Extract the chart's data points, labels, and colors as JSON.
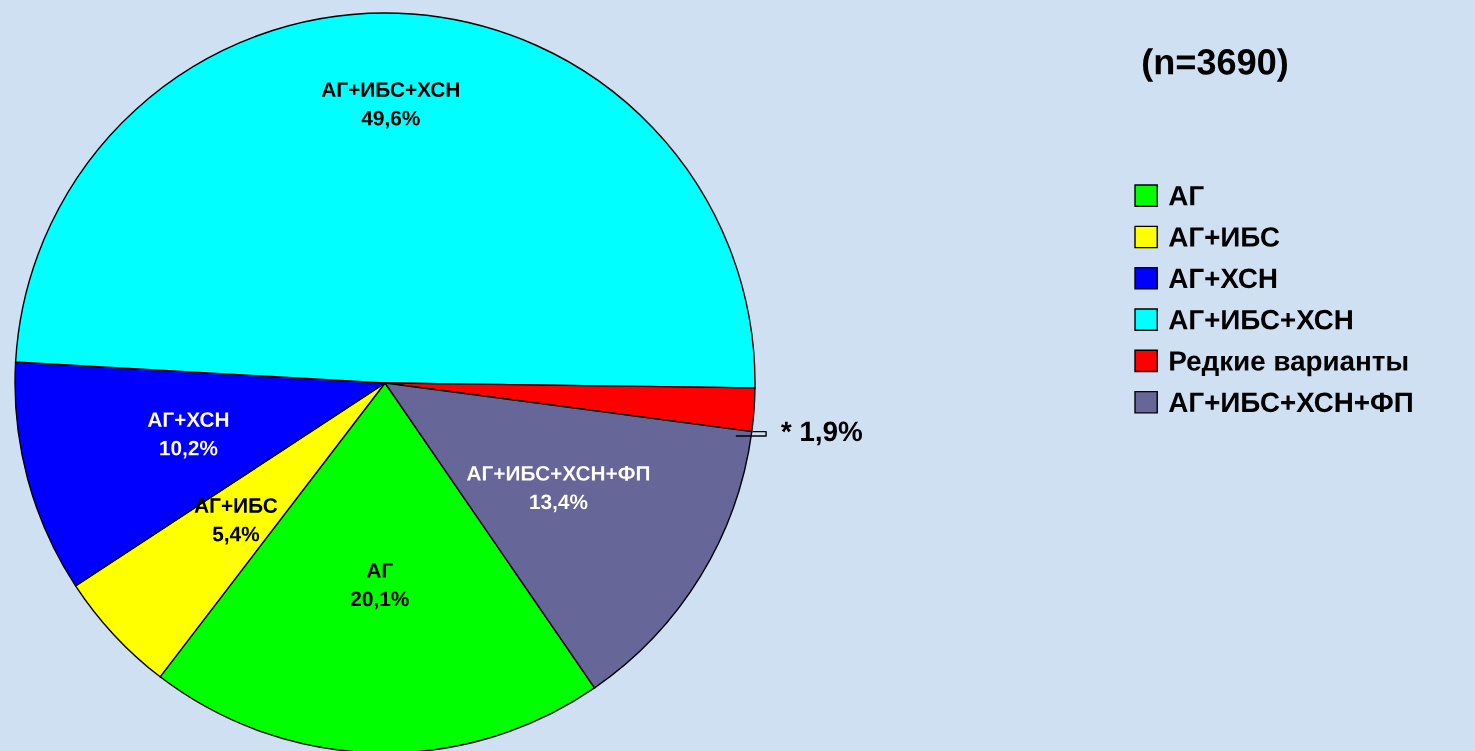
{
  "chart_data": {
    "type": "pie",
    "title": "(n=3690)",
    "categories": [
      "АГ",
      "АГ+ИБС",
      "АГ+ХСН",
      "АГ+ИБС+ХСН",
      "Редкие варианты",
      "АГ+ИБС+ХСН+ФП"
    ],
    "values": [
      20.1,
      5.4,
      10.2,
      49.6,
      1.9,
      13.4
    ],
    "value_labels": [
      "20,1%",
      "5,4%",
      "10,2%",
      "49,6%",
      "* 1,9%",
      "13,4%"
    ],
    "colors": [
      "#00ff00",
      "#ffff00",
      "#0000ff",
      "#00ffff",
      "#ff0000",
      "#666699"
    ],
    "legend": "right"
  }
}
